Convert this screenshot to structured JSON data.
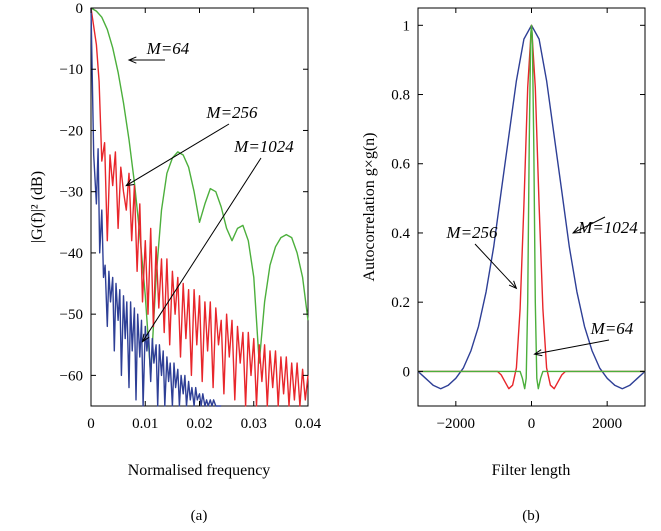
{
  "chart_data": [
    {
      "panel_label": "(a)",
      "type": "line",
      "xlabel": "Normalised frequency",
      "ylabel": "|G(f)|² (dB)",
      "xlim": [
        0,
        0.04
      ],
      "ylim": [
        -65,
        0
      ],
      "xticks": [
        "0",
        "0.01",
        "0.02",
        "0.03",
        "0.04"
      ],
      "yticks": [
        "0",
        "−10",
        "−20",
        "−30",
        "−40",
        "−50",
        "−60"
      ],
      "xtick_values": [
        0,
        0.01,
        0.02,
        0.03,
        0.04
      ],
      "ytick_values": [
        0,
        -10,
        -20,
        -30,
        -40,
        -50,
        -60
      ],
      "grid": false,
      "series": [
        {
          "name": "M=64",
          "color": "#4caf3c",
          "x": [
            0,
            0.001,
            0.002,
            0.003,
            0.004,
            0.005,
            0.006,
            0.007,
            0.008,
            0.009,
            0.01,
            0.011,
            0.012,
            0.013,
            0.014,
            0.015,
            0.016,
            0.017,
            0.018,
            0.019,
            0.02,
            0.021,
            0.022,
            0.023,
            0.024,
            0.025,
            0.026,
            0.027,
            0.028,
            0.029,
            0.03,
            0.031,
            0.032,
            0.033,
            0.034,
            0.035,
            0.036,
            0.037,
            0.038,
            0.039,
            0.04
          ],
          "values": [
            0,
            -0.5,
            -1.5,
            -3.5,
            -6.5,
            -10.5,
            -15.5,
            -21.5,
            -28.5,
            -37,
            -47,
            -60,
            -44,
            -33,
            -27,
            -24.5,
            -23.5,
            -24,
            -26,
            -30,
            -35,
            -32,
            -29.5,
            -30,
            -32.5,
            -36,
            -38,
            -36,
            -35.5,
            -38,
            -44,
            -58,
            -48,
            -42,
            -39,
            -37.5,
            -37,
            -37.5,
            -40,
            -44,
            -51
          ]
        },
        {
          "name": "M=256",
          "color": "#e8262b",
          "x": [
            0,
            0.001,
            0.0015,
            0.002,
            0.0025,
            0.003,
            0.0035,
            0.004,
            0.0045,
            0.005,
            0.0055,
            0.006,
            0.0065,
            0.007,
            0.0075,
            0.008,
            0.0085,
            0.009,
            0.0095,
            0.01,
            0.0105,
            0.011,
            0.0115,
            0.012,
            0.0125,
            0.013,
            0.0135,
            0.014,
            0.0145,
            0.015,
            0.0155,
            0.016,
            0.0165,
            0.017,
            0.0175,
            0.018,
            0.0185,
            0.019,
            0.0195,
            0.02,
            0.0205,
            0.021,
            0.0215,
            0.022,
            0.0225,
            0.023,
            0.0235,
            0.024,
            0.0245,
            0.025,
            0.0255,
            0.026,
            0.0265,
            0.027,
            0.0275,
            0.028,
            0.0285,
            0.029,
            0.0295,
            0.03,
            0.0305,
            0.031,
            0.0315,
            0.032,
            0.0325,
            0.033,
            0.0335,
            0.034,
            0.0345,
            0.035,
            0.0355,
            0.036,
            0.0365,
            0.037,
            0.0375,
            0.038,
            0.0385,
            0.039,
            0.0395,
            0.04
          ],
          "values": [
            0,
            -6,
            -12,
            -25,
            -22,
            -38,
            -24,
            -29,
            -23.5,
            -36,
            -26,
            -30,
            -33,
            -27,
            -38,
            -29,
            -43,
            -32,
            -48,
            -38,
            -50,
            -36,
            -52,
            -39,
            -49,
            -41,
            -53,
            -41,
            -55,
            -43,
            -50,
            -44,
            -57,
            -45,
            -54,
            -46,
            -60,
            -46,
            -55,
            -47,
            -61,
            -48,
            -56,
            -48,
            -62,
            -49,
            -55,
            -51,
            -63,
            -50,
            -57,
            -51,
            -64,
            -52,
            -58,
            -53,
            -65,
            -53,
            -60,
            -54,
            -65,
            -55,
            -61,
            -55,
            -65,
            -56,
            -62,
            -56,
            -65,
            -57,
            -63,
            -57,
            -65,
            -58,
            -64,
            -58,
            -65,
            -59,
            -64,
            -60
          ]
        },
        {
          "name": "M=1024",
          "color": "#2e3f96",
          "x": [
            0,
            0.0005,
            0.001,
            0.0013,
            0.0016,
            0.002,
            0.0023,
            0.0026,
            0.003,
            0.0033,
            0.0036,
            0.004,
            0.0043,
            0.0046,
            0.005,
            0.0053,
            0.0056,
            0.006,
            0.0063,
            0.0066,
            0.007,
            0.0073,
            0.0076,
            0.008,
            0.0083,
            0.0086,
            0.009,
            0.0093,
            0.0096,
            0.01,
            0.0103,
            0.0106,
            0.011,
            0.0113,
            0.0116,
            0.012,
            0.0123,
            0.0126,
            0.013,
            0.0133,
            0.0136,
            0.014,
            0.0143,
            0.0146,
            0.015,
            0.0153,
            0.0156,
            0.016,
            0.0163,
            0.0166,
            0.017,
            0.0173,
            0.0176,
            0.018,
            0.0183,
            0.0186,
            0.019,
            0.0193,
            0.0196,
            0.02,
            0.0203,
            0.0206,
            0.021,
            0.0213,
            0.0216,
            0.022,
            0.0223,
            0.0226,
            0.023,
            0.0233,
            0.0236,
            0.024
          ],
          "values": [
            0,
            -24,
            -32,
            -23,
            -40,
            -33,
            -44,
            -42,
            -52,
            -43,
            -48,
            -44,
            -56,
            -45,
            -51,
            -46,
            -60,
            -47,
            -54,
            -48,
            -62,
            -48,
            -56,
            -49,
            -64,
            -50,
            -57,
            -51,
            -65,
            -52,
            -56,
            -53,
            -61,
            -54,
            -58,
            -55,
            -65,
            -55,
            -60,
            -56,
            -65,
            -57,
            -61,
            -58,
            -65,
            -58,
            -62,
            -59,
            -65,
            -60,
            -63,
            -60,
            -65,
            -61,
            -64,
            -62,
            -65,
            -62,
            -64,
            -63,
            -65,
            -63,
            -65,
            -64,
            -65,
            -64,
            -65,
            -64,
            -65,
            -65,
            -65,
            -65
          ]
        }
      ],
      "annotations": [
        {
          "text": "M=64",
          "target_x": 0.007,
          "target_y": -8.5
        },
        {
          "text": "M=256",
          "target_x": 0.0065,
          "target_y": -29
        },
        {
          "text": "M=1024",
          "target_x": 0.0095,
          "target_y": -54.5
        }
      ]
    },
    {
      "panel_label": "(b)",
      "type": "line",
      "xlabel": "Filter length",
      "ylabel": "Autocorrelation g×g(n)",
      "xlim": [
        -3000,
        3000
      ],
      "ylim": [
        -0.1,
        1.05
      ],
      "xticks": [
        "−2000",
        "0",
        "2000"
      ],
      "yticks": [
        "0",
        "0.2",
        "0.4",
        "0.6",
        "0.8",
        "1"
      ],
      "xtick_values": [
        -2000,
        0,
        2000
      ],
      "ytick_values": [
        0,
        0.2,
        0.4,
        0.6,
        0.8,
        1
      ],
      "grid": false,
      "series": [
        {
          "name": "M=1024",
          "color": "#2e3f96",
          "x": [
            -3000,
            -2800,
            -2600,
            -2400,
            -2200,
            -2000,
            -1800,
            -1600,
            -1400,
            -1200,
            -1000,
            -800,
            -600,
            -400,
            -200,
            0,
            200,
            400,
            600,
            800,
            1000,
            1200,
            1400,
            1600,
            1800,
            2000,
            2200,
            2400,
            2600,
            2800,
            3000
          ],
          "values": [
            0,
            -0.02,
            -0.04,
            -0.05,
            -0.04,
            -0.02,
            0.01,
            0.06,
            0.13,
            0.23,
            0.36,
            0.52,
            0.68,
            0.84,
            0.96,
            1,
            0.96,
            0.84,
            0.68,
            0.52,
            0.36,
            0.23,
            0.13,
            0.06,
            0.01,
            -0.02,
            -0.04,
            -0.05,
            -0.04,
            -0.02,
            0
          ]
        },
        {
          "name": "M=256",
          "color": "#e8262b",
          "x": [
            -3000,
            -900,
            -800,
            -700,
            -600,
            -500,
            -400,
            -300,
            -200,
            -100,
            0,
            100,
            200,
            300,
            400,
            500,
            600,
            700,
            800,
            900,
            3000
          ],
          "values": [
            0,
            0,
            -0.01,
            -0.03,
            -0.05,
            -0.04,
            0.01,
            0.18,
            0.48,
            0.82,
            1,
            0.82,
            0.48,
            0.18,
            0.01,
            -0.04,
            -0.05,
            -0.03,
            -0.01,
            0,
            0
          ]
        },
        {
          "name": "M=64",
          "color": "#4caf3c",
          "x": [
            -3000,
            -300,
            -240,
            -180,
            -140,
            -100,
            -60,
            -20,
            0,
            20,
            60,
            100,
            140,
            180,
            240,
            300,
            3000
          ],
          "values": [
            0,
            0,
            -0.02,
            -0.05,
            -0.02,
            0.2,
            0.65,
            0.97,
            1,
            0.97,
            0.65,
            0.2,
            -0.02,
            -0.05,
            -0.02,
            0,
            0
          ]
        }
      ],
      "annotations": [
        {
          "text": "M=1024",
          "target_x": 1100,
          "target_y": 0.4
        },
        {
          "text": "M=256",
          "target_x": -400,
          "target_y": 0.24
        },
        {
          "text": "M=64",
          "target_x": 80,
          "target_y": 0.05
        }
      ]
    }
  ]
}
